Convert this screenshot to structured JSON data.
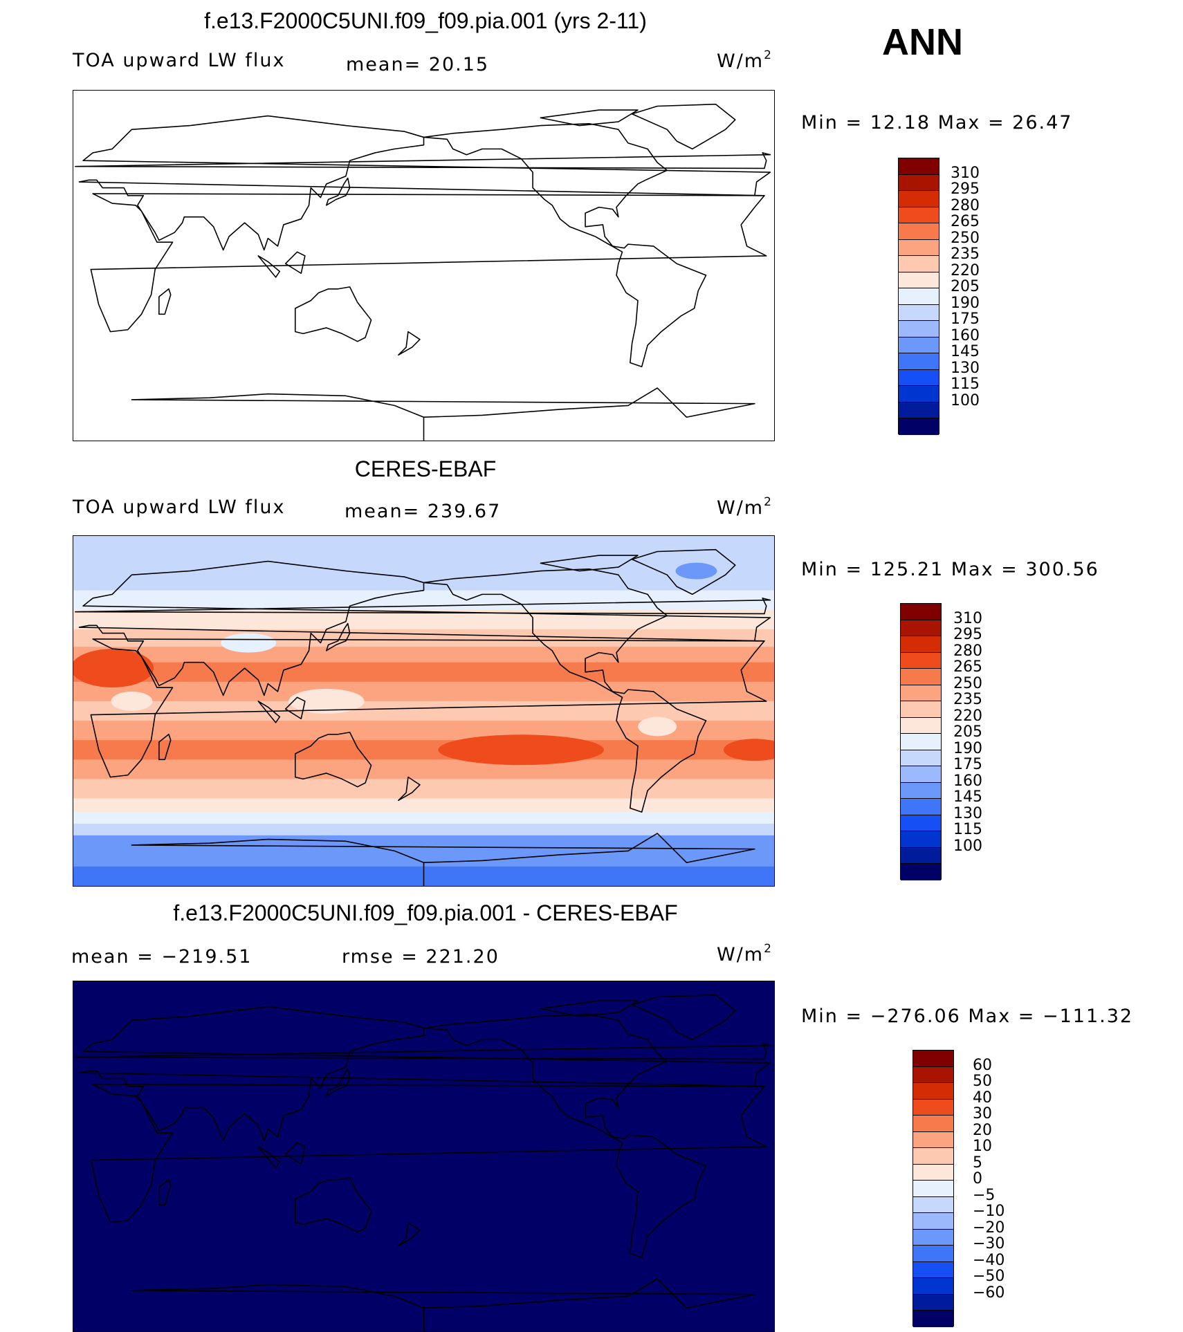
{
  "season": "ANN",
  "panels": [
    {
      "title": "f.e13.F2000C5UNI.f09_f09.pia.001 (yrs 2-11)",
      "left_label": "TOA upward LW flux",
      "mid_label": "mean=  20.15",
      "units_base": "W/m",
      "units_exp": "2",
      "stats": "Min =   12.18 Max =   26.47",
      "fill": "none"
    },
    {
      "title": "CERES-EBAF",
      "left_label": "TOA upward LW flux",
      "mid_label": "mean= 239.67",
      "units_base": "W/m",
      "units_exp": "2",
      "stats": "Min = 125.21 Max = 300.56",
      "fill": "field"
    },
    {
      "title": "f.e13.F2000C5UNI.f09_f09.pia.001 - CERES-EBAF",
      "left_label": "mean = −219.51",
      "mid_label": "rmse = 221.20",
      "units_base": "W/m",
      "units_exp": "2",
      "stats": "Min = −276.06 Max = −111.32",
      "fill": "solid"
    }
  ],
  "chart_data": [
    {
      "type": "heatmap",
      "title": "f.e13.F2000C5UNI.f09_f09.pia.001 (yrs 2-11)",
      "variable": "TOA upward LW flux",
      "units": "W/m2",
      "mean": 20.15,
      "min": 12.18,
      "max": 26.47,
      "levels": [
        100,
        115,
        130,
        145,
        160,
        175,
        190,
        205,
        220,
        235,
        250,
        265,
        280,
        295,
        310
      ],
      "level_labels": [
        "310",
        "295",
        "280",
        "265",
        "250",
        "235",
        "220",
        "205",
        "190",
        "175",
        "160",
        "145",
        "130",
        "115",
        "100"
      ],
      "colors": [
        "#000066",
        "#001c9c",
        "#0035cf",
        "#1650f5",
        "#3f76f8",
        "#6c98f9",
        "#9bb9fb",
        "#c6d9fc",
        "#e7f0fd",
        "#fde7da",
        "#fdc9b0",
        "#fca47f",
        "#f77a4d",
        "#ee4c1d",
        "#d42c05",
        "#a81400",
        "#800000"
      ]
    },
    {
      "type": "heatmap",
      "title": "CERES-EBAF",
      "variable": "TOA upward LW flux",
      "units": "W/m2",
      "mean": 239.67,
      "min": 125.21,
      "max": 300.56,
      "levels": [
        100,
        115,
        130,
        145,
        160,
        175,
        190,
        205,
        220,
        235,
        250,
        265,
        280,
        295,
        310
      ],
      "level_labels": [
        "310",
        "295",
        "280",
        "265",
        "250",
        "235",
        "220",
        "205",
        "190",
        "175",
        "160",
        "145",
        "130",
        "115",
        "100"
      ],
      "colors": [
        "#000066",
        "#001c9c",
        "#0035cf",
        "#1650f5",
        "#3f76f8",
        "#6c98f9",
        "#9bb9fb",
        "#c6d9fc",
        "#e7f0fd",
        "#fde7da",
        "#fdc9b0",
        "#fca47f",
        "#f77a4d",
        "#ee4c1d",
        "#d42c05",
        "#a81400",
        "#800000"
      ]
    },
    {
      "type": "heatmap",
      "title": "f.e13.F2000C5UNI.f09_f09.pia.001 - CERES-EBAF",
      "units": "W/m2",
      "mean": -219.51,
      "rmse": 221.2,
      "min": -276.06,
      "max": -111.32,
      "levels": [
        -60,
        -50,
        -40,
        -30,
        -20,
        -10,
        -5,
        0,
        5,
        10,
        20,
        30,
        40,
        50,
        60
      ],
      "level_labels": [
        "60",
        "50",
        "40",
        "30",
        "20",
        "10",
        "5",
        "0",
        "−5",
        "−10",
        "−20",
        "−30",
        "−40",
        "−50",
        "−60"
      ],
      "colors": [
        "#000066",
        "#001c9c",
        "#0035cf",
        "#1650f5",
        "#3f76f8",
        "#6c98f9",
        "#9bb9fb",
        "#c6d9fc",
        "#e7f0fd",
        "#fde7da",
        "#fdc9b0",
        "#fca47f",
        "#f77a4d",
        "#ee4c1d",
        "#d42c05",
        "#a81400",
        "#800000"
      ]
    }
  ]
}
